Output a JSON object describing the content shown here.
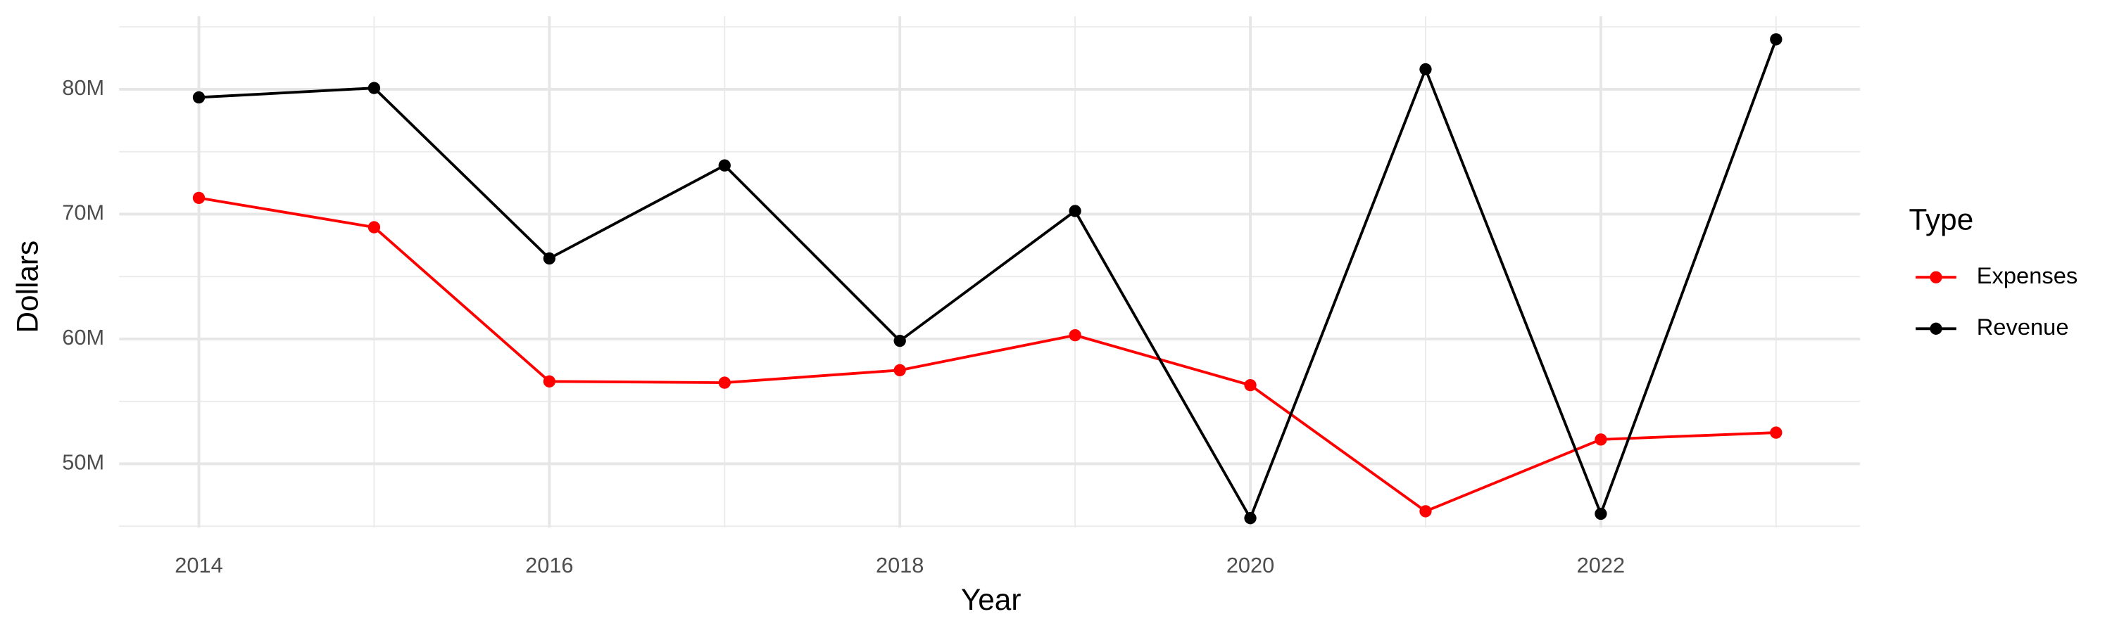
{
  "chart_data": {
    "type": "line",
    "x_label": "Year",
    "y_label": "Dollars",
    "x": [
      2014,
      2015,
      2016,
      2017,
      2018,
      2019,
      2020,
      2021,
      2022,
      2023
    ],
    "series": [
      {
        "name": "Expenses",
        "color": "#ff0000",
        "values": [
          71300000,
          68950000,
          56600000,
          56500000,
          57500000,
          60300000,
          56300000,
          46200000,
          51950000,
          52500000
        ]
      },
      {
        "name": "Revenue",
        "color": "#000000",
        "values": [
          79350000,
          80100000,
          66450000,
          73900000,
          59850000,
          70250000,
          45650000,
          81600000,
          46000000,
          84000000
        ]
      }
    ],
    "xlim": [
      2013.545,
      2023.48
    ],
    "ylim": [
      44900000,
      85850000
    ],
    "xticks": [
      2014,
      2016,
      2018,
      2020,
      2022
    ],
    "yticks": [
      {
        "value": 50000000,
        "label": "50M"
      },
      {
        "value": 60000000,
        "label": "60M"
      },
      {
        "value": 70000000,
        "label": "70M"
      },
      {
        "value": 80000000,
        "label": "80M"
      }
    ],
    "x_minor_ticks": [
      2015,
      2017,
      2019,
      2021,
      2023
    ],
    "y_minor_ticks": [
      45000000,
      55000000,
      65000000,
      75000000,
      85000000
    ],
    "grid": true,
    "legend_title": "Type",
    "legend_position": "right"
  }
}
